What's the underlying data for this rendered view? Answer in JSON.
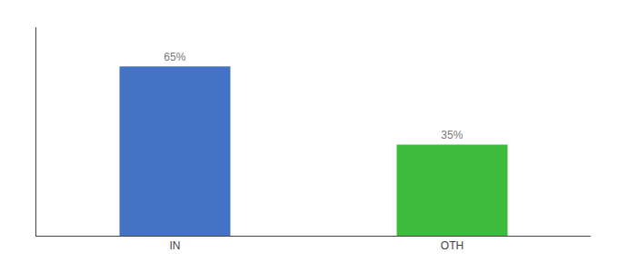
{
  "chart_data": {
    "type": "bar",
    "categories": [
      "IN",
      "OTH"
    ],
    "values": [
      65,
      35
    ],
    "value_labels": [
      "65%",
      "35%"
    ],
    "data_labels": true,
    "colors": [
      "#4472c4",
      "#3dbb3d"
    ],
    "ylim": [
      0,
      80
    ],
    "tick_labels": "x",
    "grid": false
  }
}
